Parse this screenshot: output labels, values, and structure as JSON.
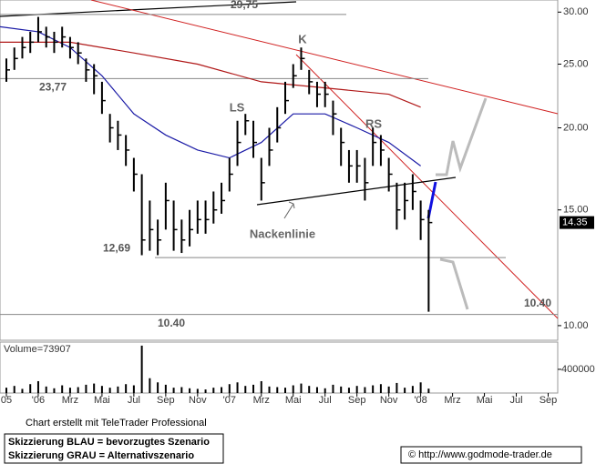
{
  "chart_data": {
    "type": "ohlc",
    "log_scale": true,
    "xlim": [
      -2.4,
      32.6
    ],
    "xticks": [
      {
        "value": -2,
        "label": "05"
      },
      {
        "value": 0,
        "label": "'06"
      },
      {
        "value": 2,
        "label": "Mrz"
      },
      {
        "value": 4,
        "label": "Mai"
      },
      {
        "value": 6,
        "label": "Jul"
      },
      {
        "value": 8,
        "label": "Sep"
      },
      {
        "value": 10,
        "label": "Nov"
      },
      {
        "value": 12,
        "label": "'07"
      },
      {
        "value": 14,
        "label": "Mrz"
      },
      {
        "value": 16,
        "label": "Mai"
      },
      {
        "value": 18,
        "label": "Jul"
      },
      {
        "value": 20,
        "label": "Sep"
      },
      {
        "value": 22,
        "label": "Nov"
      },
      {
        "value": 24,
        "label": "'08"
      },
      {
        "value": 26,
        "label": "Mrz"
      },
      {
        "value": 28,
        "label": "Mai"
      },
      {
        "value": 30,
        "label": "Jul"
      },
      {
        "value": 32,
        "label": "Sep"
      }
    ],
    "ylim": [
      9.5,
      31.3
    ],
    "yticks": [
      {
        "value": 10,
        "label": "10.00"
      },
      {
        "value": 15,
        "label": "15.00"
      },
      {
        "value": 20,
        "label": "20.00"
      },
      {
        "value": 25,
        "label": "25.00"
      },
      {
        "value": 30,
        "label": "30.00"
      }
    ],
    "color": "#000000",
    "x": [
      -2,
      -1.5,
      -1,
      -0.5,
      0,
      0.5,
      1,
      1.5,
      2,
      2.5,
      3,
      3.5,
      4,
      4.5,
      5,
      5.5,
      6,
      6.5,
      7,
      7.5,
      8,
      8.5,
      9,
      9.5,
      10,
      10.5,
      11,
      11.5,
      12,
      12.5,
      13,
      13.5,
      14,
      14.5,
      15,
      15.5,
      16,
      16.5,
      17,
      17.5,
      18,
      18.5,
      19,
      19.5,
      20,
      20.5,
      21,
      21.5,
      22,
      22.5,
      23,
      23.5,
      24,
      24.5
    ],
    "high": [
      25.5,
      26.5,
      27.5,
      28,
      29.5,
      28.5,
      28,
      28.5,
      27.5,
      27,
      25.5,
      25,
      23.5,
      21,
      20.5,
      19.5,
      18,
      17,
      15.5,
      14.5,
      16.5,
      15.5,
      14.5,
      15,
      15.5,
      15.5,
      16,
      16.5,
      18,
      20.5,
      21,
      20.5,
      18,
      20,
      21.5,
      23.5,
      25,
      26.5,
      24.5,
      23.5,
      23.5,
      22,
      20,
      18.5,
      18.5,
      18,
      20,
      19.5,
      18,
      16.5,
      16.5,
      17,
      15.5,
      15
    ],
    "low": [
      23.5,
      24.5,
      25.5,
      26,
      27,
      26.5,
      26,
      26.5,
      25.5,
      25,
      23.5,
      22.5,
      21,
      19,
      18.5,
      17.5,
      16,
      12.8,
      13,
      12.8,
      14,
      13,
      12.9,
      13.2,
      13.8,
      13.8,
      14.3,
      14.8,
      16,
      17.5,
      19.5,
      18,
      15.5,
      17.5,
      19,
      21,
      23,
      24.5,
      22.5,
      21.5,
      21.5,
      19.5,
      17.5,
      16.5,
      16.5,
      15.5,
      17.5,
      17.5,
      16,
      14,
      14.5,
      15,
      13.5,
      10.5
    ],
    "close": [
      24.5,
      25.5,
      26.5,
      27,
      28,
      27.5,
      27,
      27.5,
      26.5,
      26,
      24.5,
      24,
      22,
      20,
      19.5,
      18.5,
      17,
      13.5,
      14,
      13.5,
      15.5,
      14,
      13.5,
      14,
      14.5,
      14.5,
      15,
      15.5,
      17,
      19,
      20.5,
      19,
      16.5,
      18.5,
      20,
      22,
      24,
      25.5,
      23.5,
      22.5,
      22.5,
      21,
      19,
      17.5,
      17.5,
      16.5,
      19,
      18.5,
      17,
      15,
      15.5,
      16,
      14.5,
      14.35
    ],
    "ma_lines": [
      {
        "color": "#1a1aa6",
        "x": [
          -2.4,
          0,
          2,
          4,
          6,
          8,
          10,
          12,
          14,
          16,
          18,
          20,
          22,
          24
        ],
        "values": [
          28.5,
          28,
          26.5,
          24,
          21,
          19.5,
          18.5,
          18,
          19,
          21,
          21,
          20,
          19,
          17.5
        ]
      },
      {
        "color": "#b01818",
        "x": [
          -2.4,
          2,
          6,
          10,
          14,
          18,
          22,
          24
        ],
        "values": [
          27,
          27,
          26,
          25,
          23.5,
          23,
          22.5,
          21.5
        ]
      }
    ],
    "levels": [
      {
        "value": 29.75,
        "label": "29,75"
      },
      {
        "value": 23.77,
        "label": "23,77"
      },
      {
        "value": 12.69,
        "label": "12,69"
      },
      {
        "value": 10.4,
        "label": "10.40"
      }
    ],
    "annotations": [
      "K",
      "LS",
      "RS",
      "Nackenlinie"
    ],
    "last_price": {
      "value": 14.35,
      "label": "14.35"
    },
    "volume": {
      "label": "Volume=73907",
      "ylim": [
        0,
        860000
      ],
      "yticks": [
        400000
      ],
      "color": "#000000",
      "values": [
        90000,
        120000,
        70000,
        150000,
        200000,
        110000,
        80000,
        130000,
        90000,
        100000,
        140000,
        160000,
        120000,
        90000,
        110000,
        150000,
        130000,
        800000,
        250000,
        180000,
        140000,
        90000,
        100000,
        80000,
        70000,
        60000,
        90000,
        100000,
        150000,
        180000,
        120000,
        140000,
        200000,
        110000,
        100000,
        90000,
        130000,
        160000,
        120000,
        100000,
        80000,
        140000,
        110000,
        90000,
        120000,
        100000,
        130000,
        150000,
        110000,
        170000,
        90000,
        120000,
        180000,
        73907
      ]
    },
    "footer": {
      "credit": "Chart erstellt mit TeleTrader Professional",
      "legend_blue": "Skizzierung BLAU = bevorzugtes Szenario",
      "legend_grey": "Skizzierung GRAU = Alternativszenario",
      "source": "© http://www.godmode-trader.de"
    }
  }
}
